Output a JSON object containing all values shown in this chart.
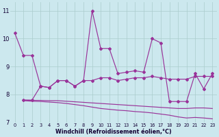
{
  "xlabel": "Windchill (Refroidissement éolien,°C)",
  "bg_color": "#cce8ee",
  "grid_color": "#aacccc",
  "line_color": "#993399",
  "line1_x": [
    0,
    1,
    2,
    3,
    4,
    5,
    6,
    7,
    8,
    9,
    10,
    11,
    12,
    13,
    14,
    15,
    16,
    17,
    18,
    19,
    20,
    21,
    22,
    23
  ],
  "line1_y": [
    10.2,
    9.4,
    9.4,
    8.3,
    8.25,
    8.5,
    8.5,
    8.3,
    8.5,
    11.0,
    9.65,
    9.65,
    8.75,
    8.8,
    8.85,
    8.8,
    10.0,
    9.85,
    7.75,
    7.75,
    7.75,
    8.75,
    8.2,
    8.75
  ],
  "line2_x": [
    1,
    2,
    3,
    4,
    5,
    6,
    7,
    8,
    9,
    10,
    11,
    12,
    13,
    14,
    15,
    16,
    17,
    18,
    19,
    20,
    21,
    22,
    23
  ],
  "line2_y": [
    7.8,
    7.8,
    8.3,
    8.25,
    8.5,
    8.5,
    8.3,
    8.5,
    8.5,
    8.6,
    8.6,
    8.5,
    8.55,
    8.6,
    8.6,
    8.65,
    8.6,
    8.55,
    8.55,
    8.55,
    8.65,
    8.65,
    8.65
  ],
  "line3_x": [
    1,
    2,
    3,
    4,
    5,
    6,
    7,
    8,
    9,
    10,
    11,
    12,
    13,
    14,
    15,
    16,
    17,
    18,
    19,
    20,
    21,
    22,
    23
  ],
  "line3_y": [
    7.8,
    7.79,
    7.79,
    7.78,
    7.78,
    7.76,
    7.74,
    7.72,
    7.7,
    7.68,
    7.66,
    7.64,
    7.62,
    7.6,
    7.58,
    7.56,
    7.54,
    7.52,
    7.5,
    7.5,
    7.52,
    7.52,
    7.5
  ],
  "line4_x": [
    1,
    2,
    3,
    4,
    5,
    6,
    7,
    8,
    9,
    10,
    11,
    12,
    13,
    14,
    15,
    16,
    17,
    18,
    19,
    20,
    21,
    22,
    23
  ],
  "line4_y": [
    7.78,
    7.76,
    7.75,
    7.73,
    7.71,
    7.68,
    7.64,
    7.6,
    7.55,
    7.5,
    7.47,
    7.44,
    7.42,
    7.39,
    7.37,
    7.34,
    7.3,
    7.26,
    7.2,
    7.16,
    7.18,
    7.16,
    7.13
  ],
  "ylim": [
    7.0,
    11.3
  ],
  "yticks": [
    7,
    8,
    9,
    10,
    11
  ],
  "xlim": [
    -0.5,
    23.5
  ]
}
